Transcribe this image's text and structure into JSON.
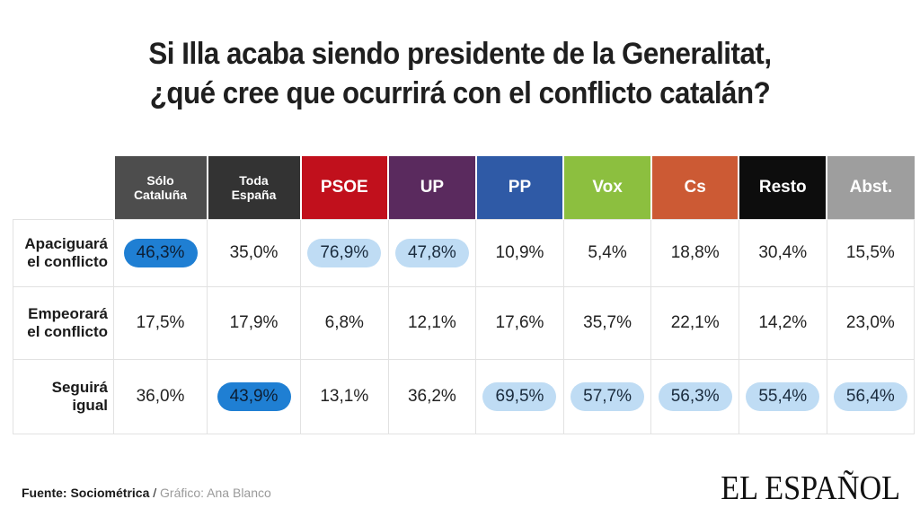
{
  "title": {
    "line1": "Si Illa acaba siendo presidente de la Generalitat,",
    "line2": "¿qué cree que ocurrirá con el conflicto catalán?"
  },
  "columns": [
    {
      "line1": "Sólo",
      "line2": "Cataluña",
      "color": "#4d4d4d"
    },
    {
      "line1": "Toda",
      "line2": "España",
      "color": "#333333"
    },
    {
      "label": "PSOE",
      "color": "#c1101c"
    },
    {
      "label": "UP",
      "color": "#5a2a5e"
    },
    {
      "label": "PP",
      "color": "#2f5aa6"
    },
    {
      "label": "Vox",
      "color": "#8cbf3f"
    },
    {
      "label": "Cs",
      "color": "#cc5a34"
    },
    {
      "label": "Resto",
      "color": "#0d0d0d"
    },
    {
      "label": "Abst.",
      "color": "#9e9e9e"
    }
  ],
  "rows": [
    {
      "line1": "Apaciguará",
      "line2": "el conflicto",
      "values": [
        "46,3%",
        "35,0%",
        "76,9%",
        "47,8%",
        "10,9%",
        "5,4%",
        "18,8%",
        "30,4%",
        "15,5%"
      ],
      "highlight": [
        "dark",
        "",
        "light",
        "light",
        "",
        "",
        "",
        "",
        ""
      ]
    },
    {
      "line1": "Empeorará",
      "line2": "el conflicto",
      "values": [
        "17,5%",
        "17,9%",
        "6,8%",
        "12,1%",
        "17,6%",
        "35,7%",
        "22,1%",
        "14,2%",
        "23,0%"
      ],
      "highlight": [
        "",
        "",
        "",
        "",
        "",
        "",
        "",
        "",
        ""
      ]
    },
    {
      "line1": "Seguirá",
      "line2": "igual",
      "values": [
        "36,0%",
        "43,9%",
        "13,1%",
        "36,2%",
        "69,5%",
        "57,7%",
        "56,3%",
        "55,4%",
        "56,4%"
      ],
      "highlight": [
        "",
        "dark",
        "",
        "",
        "light",
        "light",
        "light",
        "light",
        "light"
      ]
    }
  ],
  "chart_data": {
    "type": "table",
    "title": "Si Illa acaba siendo presidente de la Generalitat, ¿qué cree que ocurrirá con el conflicto catalán?",
    "columns": [
      "Sólo Cataluña",
      "Toda España",
      "PSOE",
      "UP",
      "PP",
      "Vox",
      "Cs",
      "Resto",
      "Abst."
    ],
    "rows": [
      "Apaciguará el conflicto",
      "Empeorará el conflicto",
      "Seguirá igual"
    ],
    "values": [
      [
        46.3,
        35.0,
        76.9,
        47.8,
        10.9,
        5.4,
        18.8,
        30.4,
        15.5
      ],
      [
        17.5,
        17.9,
        6.8,
        12.1,
        17.6,
        35.7,
        22.1,
        14.2,
        23.0
      ],
      [
        36.0,
        43.9,
        13.1,
        36.2,
        69.5,
        57.7,
        56.3,
        55.4,
        56.4
      ]
    ],
    "unit": "%"
  },
  "footer": {
    "source_label": "Fuente: Sociométrica",
    "separator": " / ",
    "credit": "Gráfico: Ana Blanco"
  },
  "brand": "EL ESPAÑOL"
}
